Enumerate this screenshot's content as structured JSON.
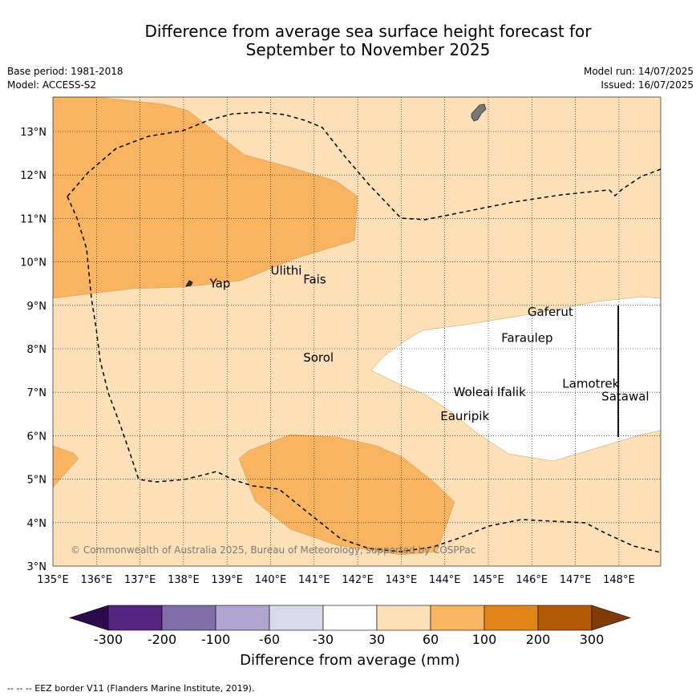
{
  "title_line1": "Difference from average sea surface height forecast for",
  "title_line2": "September to November 2025",
  "base_period": "Base period: 1981-2018",
  "model": "Model: ACCESS-S2",
  "model_run": "Model run: 14/07/2025",
  "issued": "Issued: 16/07/2025",
  "copyright": "© Commonwealth of Australia 2025, Bureau of Meteorology, supported by COSPPac",
  "lat_ticks": [
    "13°N",
    "12°N",
    "11°N",
    "10°N",
    "9°N",
    "8°N",
    "7°N",
    "6°N",
    "5°N",
    "4°N",
    "3°N"
  ],
  "lon_ticks": [
    "135°E",
    "136°E",
    "137°E",
    "138°E",
    "139°E",
    "140°E",
    "141°E",
    "142°E",
    "143°E",
    "144°E",
    "145°E",
    "146°E",
    "147°E",
    "148°E"
  ],
  "places": [
    {
      "name": "Yap",
      "lon": 138.6,
      "lat": 9.5
    },
    {
      "name": "Ulithi",
      "lon": 140.0,
      "lat": 9.8
    },
    {
      "name": "Fais",
      "lon": 140.75,
      "lat": 9.6
    },
    {
      "name": "Sorol",
      "lon": 140.75,
      "lat": 7.8
    },
    {
      "name": "Gaferut",
      "lon": 145.9,
      "lat": 8.85
    },
    {
      "name": "Faraulep",
      "lon": 145.3,
      "lat": 8.25
    },
    {
      "name": "Woleai",
      "lon": 144.2,
      "lat": 7.0
    },
    {
      "name": "Ifalik",
      "lon": 145.2,
      "lat": 7.0
    },
    {
      "name": "Lamotrek",
      "lon": 146.7,
      "lat": 7.2
    },
    {
      "name": "Satawal",
      "lon": 147.6,
      "lat": 6.9
    },
    {
      "name": "Eauripik",
      "lon": 143.9,
      "lat": 6.45
    }
  ],
  "colorbar": {
    "title": "Difference from average (mm)",
    "labels": [
      "-300",
      "-200",
      "-100",
      "-60",
      "-30",
      "30",
      "60",
      "100",
      "200",
      "300"
    ],
    "colors": [
      "#2d0a4e",
      "#54257f",
      "#7f6ea8",
      "#afa6d0",
      "#d9d9ea",
      "#ffffff",
      "#fde0b7",
      "#f9b461",
      "#e18518",
      "#b05a0a",
      "#7f3c08"
    ]
  },
  "footnote": "--  --  -- EEZ border V11 (Flanders Marine Institute, 2019)."
}
